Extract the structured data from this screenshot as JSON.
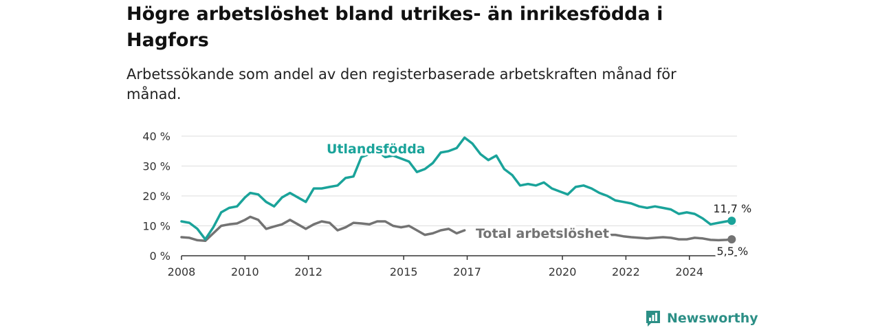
{
  "title": "Högre arbetslöshet bland utrikes- än inrikesfödda i Hagfors",
  "subtitle": "Arbetssökande som andel av den registerbaserade arbetskraften månad för månad.",
  "brand": {
    "name": "Newsworthy"
  },
  "colors": {
    "foreign": "#1aa39a",
    "total": "#737373",
    "axis": "#333333",
    "grid": "#dddddd",
    "brand": "#2c8f86"
  },
  "chart_data": {
    "type": "line",
    "title": "Högre arbetslöshet bland utrikes- än inrikesfödda i Hagfors",
    "subtitle": "Arbetssökande som andel av den registerbaserade arbetskraften månad för månad.",
    "x_ticks": [
      "2008",
      "2010",
      "2012",
      "2015",
      "2017",
      "2020",
      "2022",
      "2024"
    ],
    "y_ticks": [
      "0 %",
      "10 %",
      "20 %",
      "30 %",
      "40 %"
    ],
    "xlim": [
      "2008-01",
      "2025-07"
    ],
    "ylim": [
      0,
      40
    ],
    "grid": true,
    "series": [
      {
        "name": "Utlandsfödda",
        "color": "#1aa39a",
        "end_label": "11,7 %",
        "points": [
          [
            "2008-01",
            11.5
          ],
          [
            "2008-04",
            11.0
          ],
          [
            "2008-07",
            9.0
          ],
          [
            "2008-10",
            5.5
          ],
          [
            "2009-01",
            9.5
          ],
          [
            "2009-04",
            14.5
          ],
          [
            "2009-07",
            16.0
          ],
          [
            "2009-10",
            16.5
          ],
          [
            "2010-01",
            19.5
          ],
          [
            "2010-03",
            21.0
          ],
          [
            "2010-06",
            20.5
          ],
          [
            "2010-09",
            18.0
          ],
          [
            "2010-12",
            16.5
          ],
          [
            "2011-03",
            19.5
          ],
          [
            "2011-06",
            21.0
          ],
          [
            "2011-09",
            19.5
          ],
          [
            "2011-12",
            18.0
          ],
          [
            "2012-03",
            22.5
          ],
          [
            "2012-06",
            22.5
          ],
          [
            "2012-09",
            23.0
          ],
          [
            "2012-12",
            23.5
          ],
          [
            "2013-03",
            26.0
          ],
          [
            "2013-06",
            26.5
          ],
          [
            "2013-09",
            33.0
          ],
          [
            "2013-12",
            34.0
          ],
          [
            "2014-03",
            35.0
          ],
          [
            "2014-06",
            33.0
          ],
          [
            "2014-09",
            33.5
          ],
          [
            "2014-12",
            32.5
          ],
          [
            "2015-03",
            31.5
          ],
          [
            "2015-06",
            28.0
          ],
          [
            "2015-09",
            29.0
          ],
          [
            "2015-12",
            31.0
          ],
          [
            "2016-03",
            34.5
          ],
          [
            "2016-06",
            35.0
          ],
          [
            "2016-09",
            36.0
          ],
          [
            "2016-12",
            39.5
          ],
          [
            "2017-03",
            37.5
          ],
          [
            "2017-06",
            34.0
          ],
          [
            "2017-09",
            32.0
          ],
          [
            "2017-12",
            33.5
          ],
          [
            "2018-03",
            29.0
          ],
          [
            "2018-06",
            27.0
          ],
          [
            "2018-09",
            23.5
          ],
          [
            "2018-12",
            24.0
          ],
          [
            "2019-03",
            23.5
          ],
          [
            "2019-06",
            24.5
          ],
          [
            "2019-09",
            22.5
          ],
          [
            "2019-12",
            21.5
          ],
          [
            "2020-03",
            20.5
          ],
          [
            "2020-06",
            23.0
          ],
          [
            "2020-09",
            23.5
          ],
          [
            "2020-12",
            22.5
          ],
          [
            "2021-03",
            21.0
          ],
          [
            "2021-06",
            20.0
          ],
          [
            "2021-09",
            18.5
          ],
          [
            "2021-12",
            18.0
          ],
          [
            "2022-03",
            17.5
          ],
          [
            "2022-06",
            16.5
          ],
          [
            "2022-09",
            16.0
          ],
          [
            "2022-12",
            16.5
          ],
          [
            "2023-03",
            16.0
          ],
          [
            "2023-06",
            15.5
          ],
          [
            "2023-09",
            14.0
          ],
          [
            "2023-12",
            14.5
          ],
          [
            "2024-03",
            14.0
          ],
          [
            "2024-06",
            12.5
          ],
          [
            "2024-09",
            10.5
          ],
          [
            "2024-12",
            11.0
          ],
          [
            "2025-03",
            11.5
          ],
          [
            "2025-05",
            11.7
          ]
        ]
      },
      {
        "name": "Total arbetslöshet",
        "color": "#737373",
        "end_label": "5,5 %",
        "points": [
          [
            "2008-01",
            6.2
          ],
          [
            "2008-04",
            6.0
          ],
          [
            "2008-07",
            5.2
          ],
          [
            "2008-10",
            5.0
          ],
          [
            "2009-01",
            7.5
          ],
          [
            "2009-04",
            10.0
          ],
          [
            "2009-07",
            10.5
          ],
          [
            "2009-10",
            10.8
          ],
          [
            "2010-01",
            12.0
          ],
          [
            "2010-03",
            13.0
          ],
          [
            "2010-06",
            12.0
          ],
          [
            "2010-09",
            9.0
          ],
          [
            "2010-12",
            9.8
          ],
          [
            "2011-03",
            10.5
          ],
          [
            "2011-06",
            12.0
          ],
          [
            "2011-09",
            10.5
          ],
          [
            "2011-12",
            9.0
          ],
          [
            "2012-03",
            10.5
          ],
          [
            "2012-06",
            11.5
          ],
          [
            "2012-09",
            11.0
          ],
          [
            "2012-12",
            8.5
          ],
          [
            "2013-03",
            9.5
          ],
          [
            "2013-06",
            11.0
          ],
          [
            "2013-09",
            10.8
          ],
          [
            "2013-12",
            10.5
          ],
          [
            "2014-03",
            11.5
          ],
          [
            "2014-06",
            11.5
          ],
          [
            "2014-09",
            10.0
          ],
          [
            "2014-12",
            9.5
          ],
          [
            "2015-03",
            10.0
          ],
          [
            "2015-06",
            8.5
          ],
          [
            "2015-09",
            7.0
          ],
          [
            "2015-12",
            7.5
          ],
          [
            "2016-03",
            8.5
          ],
          [
            "2016-06",
            9.0
          ],
          [
            "2016-09",
            7.5
          ],
          [
            "2016-12",
            8.5
          ],
          [
            "2021-03",
            7.5
          ],
          [
            "2021-06",
            7.0
          ],
          [
            "2021-09",
            7.0
          ],
          [
            "2021-12",
            6.5
          ],
          [
            "2022-03",
            6.2
          ],
          [
            "2022-06",
            6.0
          ],
          [
            "2022-09",
            5.8
          ],
          [
            "2022-12",
            6.0
          ],
          [
            "2023-03",
            6.2
          ],
          [
            "2023-06",
            6.0
          ],
          [
            "2023-09",
            5.5
          ],
          [
            "2023-12",
            5.5
          ],
          [
            "2024-03",
            6.0
          ],
          [
            "2024-06",
            5.8
          ],
          [
            "2024-09",
            5.3
          ],
          [
            "2024-12",
            5.2
          ],
          [
            "2025-03",
            5.3
          ],
          [
            "2025-05",
            5.5
          ]
        ]
      }
    ]
  }
}
